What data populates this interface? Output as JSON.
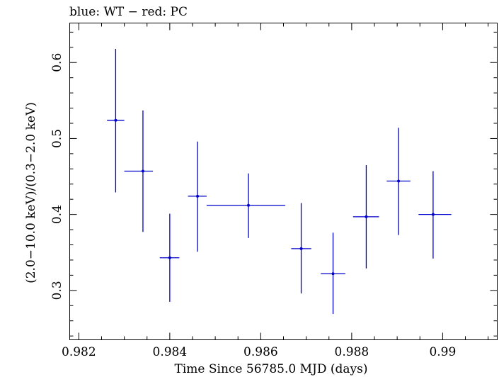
{
  "chart_data": {
    "type": "scatter",
    "title": "blue: WT − red: PC",
    "xlabel": "Time Since 56785.0 MJD (days)",
    "ylabel": "(2.0−10.0 keV)/(0.3−2.0 keV)",
    "xlim": [
      0.9818,
      0.9912
    ],
    "ylim": [
      0.235,
      0.652
    ],
    "x_ticks": [
      0.982,
      0.984,
      0.986,
      0.988,
      0.99
    ],
    "x_tick_labels": [
      "0.982",
      "0.984",
      "0.986",
      "0.988",
      "0.99"
    ],
    "y_ticks": [
      0.3,
      0.4,
      0.5,
      0.6
    ],
    "y_tick_labels": [
      "0.3",
      "0.4",
      "0.5",
      "0.6"
    ],
    "grid": false,
    "series": [
      {
        "color": "#0000cc",
        "points": [
          {
            "x": 0.98281,
            "y": 0.524,
            "xlo": 0.98262,
            "xhi": 0.983,
            "ylo": 0.429,
            "yhi": 0.618
          },
          {
            "x": 0.98341,
            "y": 0.457,
            "xlo": 0.983,
            "xhi": 0.98363,
            "ylo": 0.377,
            "yhi": 0.537
          },
          {
            "x": 0.984,
            "y": 0.343,
            "xlo": 0.98378,
            "xhi": 0.98421,
            "ylo": 0.285,
            "yhi": 0.401
          },
          {
            "x": 0.98461,
            "y": 0.424,
            "xlo": 0.9844,
            "xhi": 0.98481,
            "ylo": 0.351,
            "yhi": 0.496
          },
          {
            "x": 0.98573,
            "y": 0.412,
            "xlo": 0.98481,
            "xhi": 0.98654,
            "ylo": 0.369,
            "yhi": 0.454
          },
          {
            "x": 0.98689,
            "y": 0.355,
            "xlo": 0.98667,
            "xhi": 0.98711,
            "ylo": 0.296,
            "yhi": 0.415
          },
          {
            "x": 0.98759,
            "y": 0.322,
            "xlo": 0.98732,
            "xhi": 0.98786,
            "ylo": 0.269,
            "yhi": 0.376
          },
          {
            "x": 0.98832,
            "y": 0.397,
            "xlo": 0.98803,
            "xhi": 0.9886,
            "ylo": 0.329,
            "yhi": 0.465
          },
          {
            "x": 0.98903,
            "y": 0.444,
            "xlo": 0.98877,
            "xhi": 0.98929,
            "ylo": 0.373,
            "yhi": 0.514
          },
          {
            "x": 0.98979,
            "y": 0.4,
            "xlo": 0.98947,
            "xhi": 0.99019,
            "ylo": 0.342,
            "yhi": 0.457
          }
        ]
      }
    ]
  }
}
